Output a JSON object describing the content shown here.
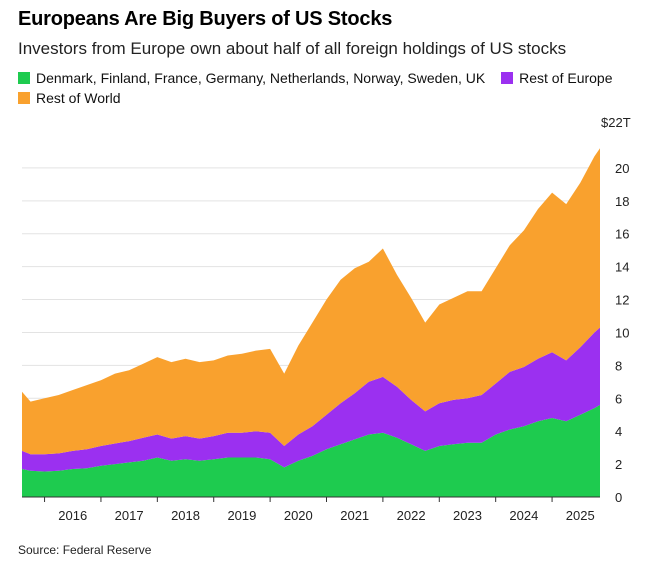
{
  "title": "Europeans Are Big Buyers of US Stocks",
  "subtitle": "Investors from Europe own about half of all foreign holdings of US stocks",
  "source": "Source: Federal Reserve",
  "legend": [
    {
      "label": "Denmark, Finland, France, Germany, Netherlands, Norway, Sweden, UK",
      "color": "#1ecb4f"
    },
    {
      "label": "Rest of Europe",
      "color": "#9b30f0"
    },
    {
      "label": "Rest of World",
      "color": "#f9a12e"
    }
  ],
  "chart_data": {
    "type": "area",
    "stacked": true,
    "y_unit_label": "$22T",
    "ylim": [
      0,
      22
    ],
    "yticks": [
      0,
      2,
      4,
      6,
      8,
      10,
      12,
      14,
      16,
      18,
      20
    ],
    "ytick_labels": [
      "0",
      "2",
      "4",
      "6",
      "8",
      "10",
      "12",
      "14",
      "16",
      "18",
      "20"
    ],
    "xlim": [
      2015.6,
      2025.85
    ],
    "xtick_labels": [
      "2016",
      "2017",
      "2018",
      "2019",
      "2020",
      "2021",
      "2022",
      "2023",
      "2024",
      "2025"
    ],
    "grid": "horizontal",
    "y_axis_side": "right",
    "x": [
      2015.6,
      2015.75,
      2016.0,
      2016.25,
      2016.5,
      2016.75,
      2017.0,
      2017.25,
      2017.5,
      2017.75,
      2018.0,
      2018.25,
      2018.5,
      2018.75,
      2019.0,
      2019.25,
      2019.5,
      2019.75,
      2020.0,
      2020.25,
      2020.5,
      2020.75,
      2021.0,
      2021.25,
      2021.5,
      2021.75,
      2022.0,
      2022.25,
      2022.5,
      2022.75,
      2023.0,
      2023.25,
      2023.5,
      2023.75,
      2024.0,
      2024.25,
      2024.5,
      2024.75,
      2025.0,
      2025.25,
      2025.5,
      2025.75,
      2025.85
    ],
    "series": [
      {
        "name": "Denmark, Finland, France, Germany, Netherlands, Norway, Sweden, UK",
        "color": "#1ecb4f",
        "values": [
          1.7,
          1.6,
          1.55,
          1.6,
          1.7,
          1.75,
          1.9,
          2.0,
          2.1,
          2.2,
          2.4,
          2.2,
          2.3,
          2.2,
          2.3,
          2.4,
          2.4,
          2.4,
          2.3,
          1.8,
          2.2,
          2.5,
          2.9,
          3.2,
          3.5,
          3.8,
          3.9,
          3.6,
          3.2,
          2.8,
          3.1,
          3.2,
          3.3,
          3.3,
          3.8,
          4.1,
          4.3,
          4.6,
          4.8,
          4.6,
          5.0,
          5.4,
          5.6
        ]
      },
      {
        "name": "Rest of Europe",
        "color": "#9b30f0",
        "values": [
          1.1,
          1.0,
          1.05,
          1.05,
          1.1,
          1.15,
          1.2,
          1.25,
          1.3,
          1.4,
          1.4,
          1.35,
          1.4,
          1.35,
          1.4,
          1.5,
          1.5,
          1.6,
          1.6,
          1.3,
          1.6,
          1.8,
          2.1,
          2.5,
          2.8,
          3.2,
          3.4,
          3.1,
          2.7,
          2.4,
          2.6,
          2.7,
          2.7,
          2.9,
          3.1,
          3.5,
          3.6,
          3.8,
          4.0,
          3.7,
          4.1,
          4.6,
          4.7
        ]
      },
      {
        "name": "Rest of World",
        "color": "#f9a12e",
        "values": [
          3.6,
          3.2,
          3.4,
          3.55,
          3.7,
          3.9,
          4.0,
          4.25,
          4.3,
          4.5,
          4.7,
          4.65,
          4.7,
          4.65,
          4.6,
          4.7,
          4.8,
          4.9,
          5.1,
          4.4,
          5.4,
          6.3,
          7.0,
          7.5,
          7.6,
          7.3,
          7.8,
          6.8,
          6.2,
          5.4,
          6.0,
          6.2,
          6.5,
          6.3,
          7.0,
          7.7,
          8.3,
          9.1,
          9.7,
          9.5,
          10.0,
          10.7,
          10.9
        ]
      }
    ]
  }
}
